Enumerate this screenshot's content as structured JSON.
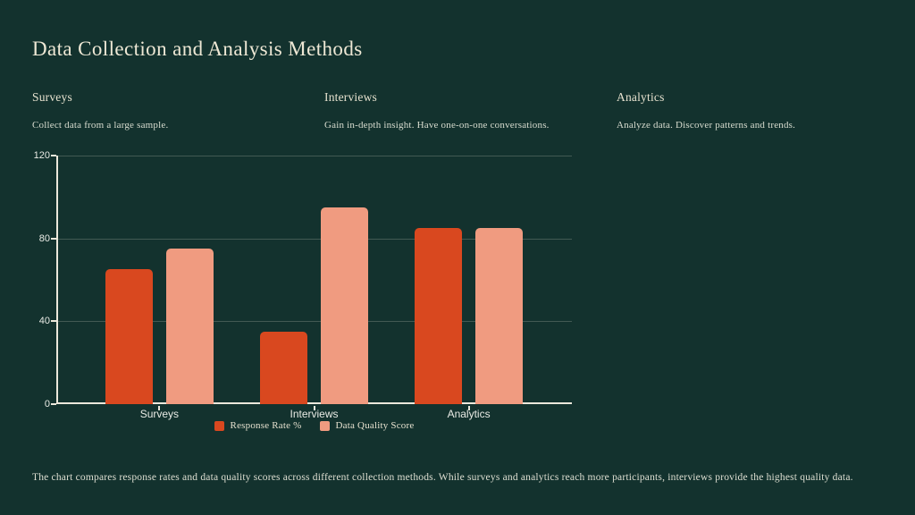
{
  "slide": {
    "title": "Data Collection and Analysis Methods",
    "colors": {
      "background": "#13322e",
      "title_text": "#eee8d5",
      "body_text": "#d9ddd0",
      "axis": "#ebe8db"
    }
  },
  "sections": [
    {
      "heading": "Surveys",
      "description": "Collect data from a large sample."
    },
    {
      "heading": "Interviews",
      "description": "Gain in-depth insight. Have one-on-one conversations."
    },
    {
      "heading": "Analytics",
      "description": "Analyze data. Discover patterns and trends."
    }
  ],
  "chart_data": {
    "type": "bar",
    "categories": [
      "Surveys",
      "Interviews",
      "Analytics"
    ],
    "series": [
      {
        "name": "Response Rate %",
        "color": "#d9481f",
        "values": [
          65,
          35,
          85
        ]
      },
      {
        "name": "Data Quality Score",
        "color": "#f09b80",
        "values": [
          75,
          95,
          85
        ]
      }
    ],
    "title": "",
    "xlabel": "",
    "ylabel": "",
    "yticks": [
      0,
      40,
      80,
      120
    ],
    "ylim": [
      0,
      120
    ],
    "grid": true,
    "legend_position": "bottom-center"
  },
  "caption": "The chart compares response rates and data quality scores across different collection methods. While surveys and analytics reach more participants, interviews provide the highest quality data."
}
